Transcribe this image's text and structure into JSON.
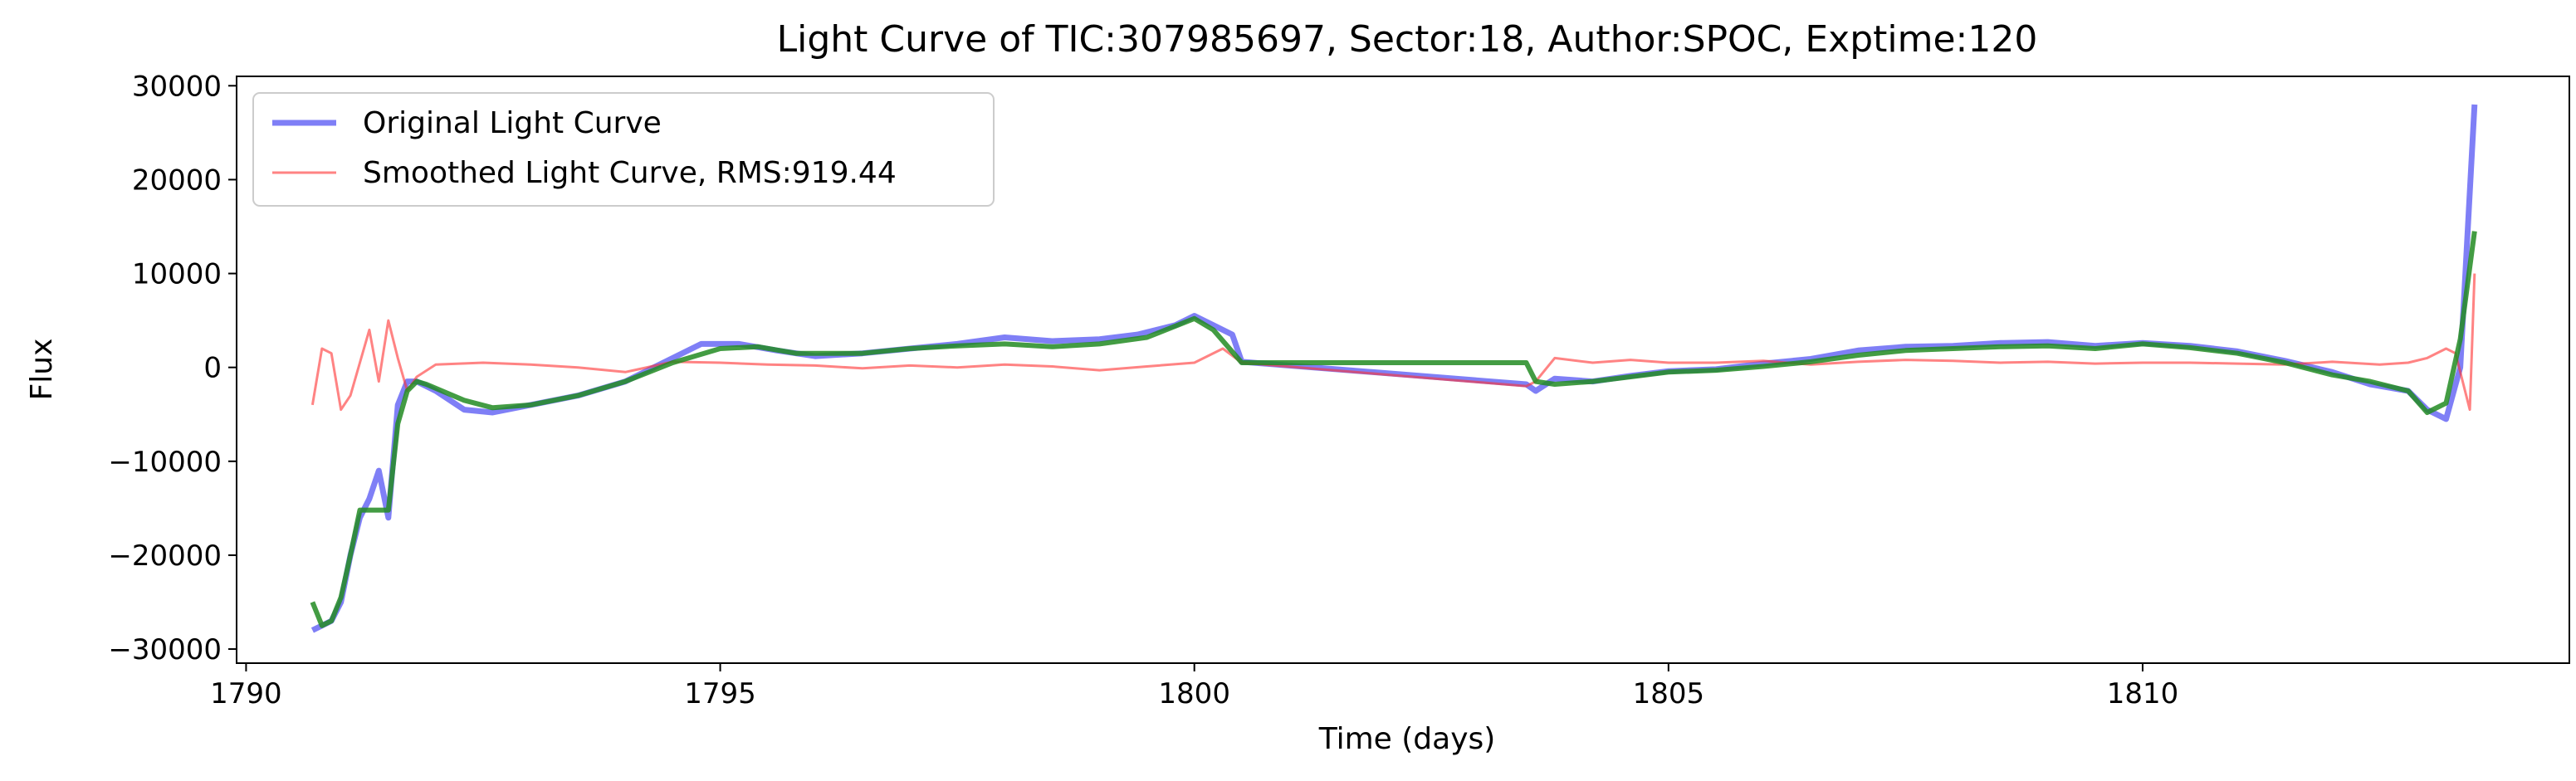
{
  "chart_data": {
    "type": "line",
    "title": "Light Curve of TIC:307985697, Sector:18, Author:SPOC, Exptime:120",
    "xlabel": "Time (days)",
    "ylabel": "Flux",
    "xlim": [
      1789.9,
      1814.5
    ],
    "ylim": [
      -31500,
      31000
    ],
    "xticks": [
      1790,
      1795,
      1800,
      1805,
      1810
    ],
    "yticks": [
      -30000,
      -20000,
      -10000,
      0,
      10000,
      20000,
      30000
    ],
    "grid": false,
    "legend_position": "top-left",
    "series": [
      {
        "name": "Original Light Curve",
        "color": "#0000ee",
        "opacity": 0.5,
        "x": [
          1790.7,
          1790.9,
          1791.0,
          1791.1,
          1791.2,
          1791.3,
          1791.4,
          1791.5,
          1791.6,
          1791.7,
          1791.8,
          1792.0,
          1792.3,
          1792.6,
          1793.0,
          1793.5,
          1794.0,
          1794.4,
          1794.8,
          1795.2,
          1795.6,
          1796.0,
          1796.5,
          1797.0,
          1797.5,
          1798.0,
          1798.5,
          1799.0,
          1799.4,
          1799.8,
          1800.0,
          1800.2,
          1800.4,
          1800.5,
          1803.5,
          1803.6,
          1803.8,
          1804.2,
          1804.6,
          1805.0,
          1805.5,
          1806.0,
          1806.5,
          1807.0,
          1807.5,
          1808.0,
          1808.5,
          1809.0,
          1809.5,
          1810.0,
          1810.5,
          1811.0,
          1811.5,
          1812.0,
          1812.4,
          1812.8,
          1813.0,
          1813.2,
          1813.35,
          1813.5
        ],
        "y": [
          -28000,
          -27000,
          -25000,
          -20000,
          -16000,
          -14000,
          -11000,
          -16000,
          -4000,
          -1500,
          -1500,
          -2500,
          -4500,
          -4800,
          -4000,
          -3000,
          -1500,
          500,
          2500,
          2500,
          1800,
          1200,
          1500,
          2000,
          2500,
          3200,
          2800,
          3000,
          3500,
          4500,
          5500,
          4500,
          3500,
          600,
          -1800,
          -2500,
          -1200,
          -1500,
          -900,
          -400,
          -200,
          400,
          900,
          1800,
          2200,
          2300,
          2600,
          2700,
          2300,
          2600,
          2300,
          1700,
          700,
          -500,
          -1800,
          -2500,
          -4500,
          -5500,
          0,
          28000
        ]
      },
      {
        "name": "Smoothed Light Curve, RMS:919.44",
        "color": "#ff3030",
        "opacity": 0.6,
        "x": [
          1790.7,
          1790.8,
          1790.9,
          1791.0,
          1791.1,
          1791.2,
          1791.3,
          1791.4,
          1791.5,
          1791.6,
          1791.7,
          1791.8,
          1792.0,
          1792.5,
          1793.0,
          1793.5,
          1794.0,
          1794.5,
          1795.0,
          1795.5,
          1796.0,
          1796.5,
          1797.0,
          1797.5,
          1798.0,
          1798.5,
          1799.0,
          1799.5,
          1800.0,
          1800.3,
          1800.5,
          1803.5,
          1803.6,
          1803.8,
          1804.2,
          1804.6,
          1805.0,
          1805.5,
          1806.0,
          1806.5,
          1807.0,
          1807.5,
          1808.0,
          1808.5,
          1809.0,
          1809.5,
          1810.0,
          1810.5,
          1811.0,
          1811.5,
          1812.0,
          1812.5,
          1812.8,
          1813.0,
          1813.2,
          1813.3,
          1813.45,
          1813.5
        ],
        "y": [
          -4000,
          2000,
          1500,
          -4500,
          -3000,
          500,
          4000,
          -1500,
          5000,
          1000,
          -2500,
          -1000,
          300,
          500,
          300,
          0,
          -500,
          600,
          500,
          300,
          200,
          -100,
          200,
          0,
          300,
          100,
          -300,
          100,
          500,
          2000,
          500,
          -2000,
          -1500,
          1000,
          500,
          800,
          500,
          500,
          700,
          300,
          600,
          800,
          700,
          500,
          600,
          400,
          500,
          500,
          400,
          300,
          600,
          300,
          500,
          1000,
          2000,
          1500,
          -4500,
          10000
        ]
      },
      {
        "name": "",
        "color": "#228b22",
        "opacity": 0.85,
        "x": [
          1790.7,
          1790.8,
          1790.9,
          1791.0,
          1791.1,
          1791.2,
          1791.5,
          1791.6,
          1791.7,
          1791.8,
          1791.9,
          1792.3,
          1792.6,
          1793.0,
          1793.5,
          1794.0,
          1794.5,
          1795.0,
          1795.4,
          1795.8,
          1796.5,
          1797.0,
          1797.5,
          1798.0,
          1798.5,
          1799.0,
          1799.5,
          1800.0,
          1800.2,
          1800.5,
          1803.5,
          1803.6,
          1803.8,
          1804.2,
          1804.6,
          1805.0,
          1805.5,
          1806.0,
          1806.5,
          1807.0,
          1807.5,
          1808.0,
          1808.5,
          1809.0,
          1809.5,
          1810.0,
          1810.5,
          1811.0,
          1811.5,
          1812.0,
          1812.4,
          1812.8,
          1813.0,
          1813.2,
          1813.35,
          1813.5
        ],
        "y": [
          -25000,
          -27500,
          -27000,
          -24500,
          -20000,
          -15200,
          -15200,
          -6000,
          -2500,
          -1500,
          -1800,
          -3500,
          -4300,
          -4000,
          -3000,
          -1500,
          500,
          2000,
          2200,
          1500,
          1500,
          2000,
          2300,
          2500,
          2200,
          2500,
          3200,
          5200,
          4000,
          500,
          500,
          -1500,
          -1800,
          -1500,
          -1000,
          -500,
          -300,
          100,
          600,
          1300,
          1800,
          2000,
          2200,
          2300,
          2000,
          2500,
          2100,
          1500,
          500,
          -800,
          -1500,
          -2500,
          -4800,
          -3800,
          3000,
          14500
        ]
      }
    ]
  }
}
